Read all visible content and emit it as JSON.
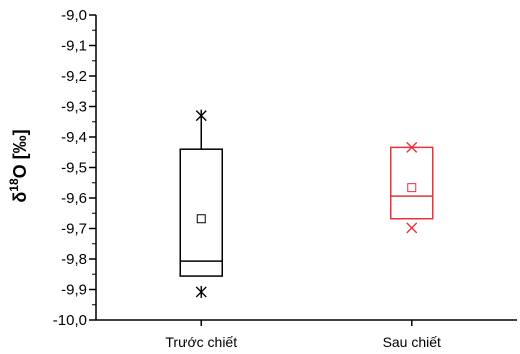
{
  "chart_data": {
    "type": "box",
    "ylabel": {
      "prefix": "δ",
      "superscript": "18",
      "suffix": "O [‰]"
    },
    "ylim": [
      -10.0,
      -9.0
    ],
    "y_ticks": [
      -9.0,
      -9.1,
      -9.2,
      -9.3,
      -9.4,
      -9.5,
      -9.6,
      -9.7,
      -9.8,
      -9.9,
      -10.0
    ],
    "y_tick_labels": [
      "-9,0",
      "-9,1",
      "-9,2",
      "-9,3",
      "-9,4",
      "-9,5",
      "-9,6",
      "-9,7",
      "-9,8",
      "-9,9",
      "-10,0"
    ],
    "categories": [
      "Trước chiết",
      "Sau chiết"
    ],
    "boxes": [
      {
        "category": "Trước chiết",
        "color": "#000000",
        "q1": -9.856,
        "median": -9.807,
        "q3": -9.44,
        "mean": -9.668,
        "whisker_low": -9.856,
        "whisker_high": -9.33,
        "min": -9.908,
        "max": -9.33
      },
      {
        "category": "Sau chiết",
        "color": "#e8323c",
        "q1": -9.668,
        "median": -9.594,
        "q3": -9.434,
        "mean": -9.566,
        "whisker_low": -9.668,
        "whisker_high": -9.434,
        "min": -9.698,
        "max": -9.434
      }
    ]
  }
}
